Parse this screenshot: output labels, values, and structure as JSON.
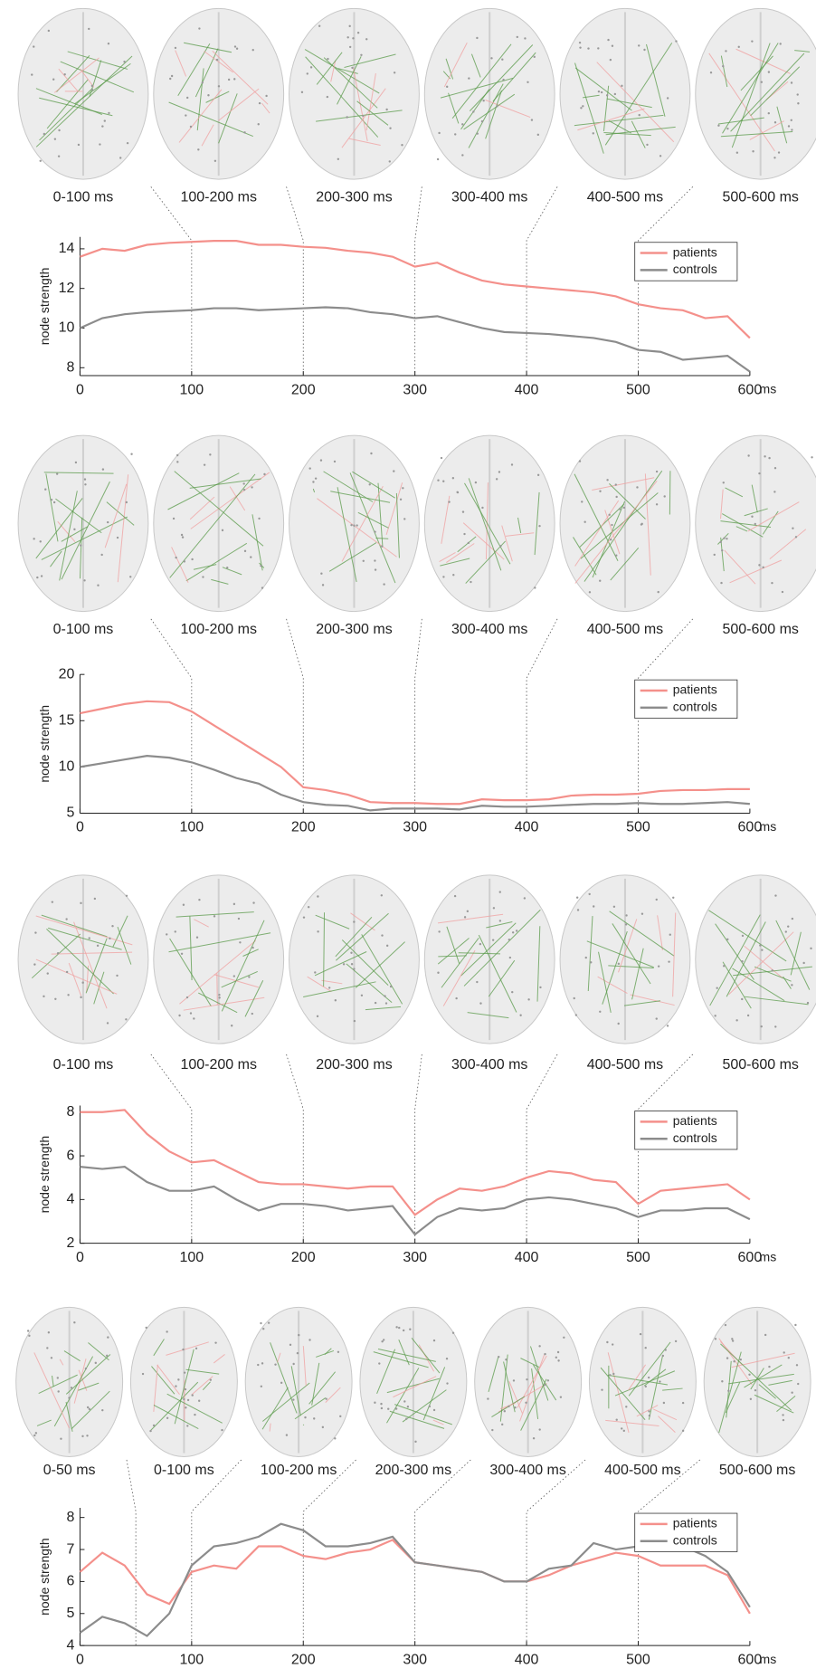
{
  "chart_data": [
    {
      "type": "line",
      "ylabel": "node strength",
      "xunit": "ms",
      "brain_labels": [
        "0-100 ms",
        "100-200 ms",
        "200-300 ms",
        "300-400 ms",
        "400-500 ms",
        "500-600 ms"
      ],
      "x": [
        0,
        20,
        40,
        60,
        80,
        100,
        120,
        140,
        160,
        180,
        200,
        220,
        240,
        260,
        280,
        300,
        320,
        340,
        360,
        380,
        400,
        420,
        440,
        460,
        480,
        500,
        520,
        540,
        560,
        580,
        600
      ],
      "series": [
        {
          "name": "patients",
          "color": "#f4908b",
          "values": [
            13.6,
            14.0,
            13.9,
            14.2,
            14.3,
            14.35,
            14.4,
            14.4,
            14.2,
            14.2,
            14.1,
            14.05,
            13.9,
            13.8,
            13.6,
            13.1,
            13.3,
            12.8,
            12.4,
            12.2,
            12.1,
            12.0,
            11.9,
            11.8,
            11.6,
            11.2,
            11.0,
            10.9,
            10.5,
            10.6,
            9.5
          ]
        },
        {
          "name": "controls",
          "color": "#8c8c8c",
          "values": [
            10.0,
            10.5,
            10.7,
            10.8,
            10.85,
            10.9,
            11.0,
            11.0,
            10.9,
            10.95,
            11.0,
            11.05,
            11.0,
            10.8,
            10.7,
            10.5,
            10.6,
            10.3,
            10.0,
            9.8,
            9.75,
            9.7,
            9.6,
            9.5,
            9.3,
            8.9,
            8.8,
            8.4,
            8.5,
            8.6,
            7.8
          ]
        }
      ],
      "xlim": [
        0,
        600
      ],
      "xticks": [
        0,
        100,
        200,
        300,
        400,
        500,
        600
      ],
      "ylim": [
        7.6,
        14.6
      ],
      "yticks": [
        8,
        10,
        12,
        14
      ],
      "legend": "upper right"
    },
    {
      "type": "line",
      "ylabel": "node strength",
      "xunit": "ms",
      "brain_labels": [
        "0-100 ms",
        "100-200 ms",
        "200-300 ms",
        "300-400 ms",
        "400-500 ms",
        "500-600 ms"
      ],
      "x": [
        0,
        20,
        40,
        60,
        80,
        100,
        120,
        140,
        160,
        180,
        200,
        220,
        240,
        260,
        280,
        300,
        320,
        340,
        360,
        380,
        400,
        420,
        440,
        460,
        480,
        500,
        520,
        540,
        560,
        580,
        600
      ],
      "series": [
        {
          "name": "patients",
          "color": "#f4908b",
          "values": [
            15.8,
            16.3,
            16.8,
            17.1,
            17.0,
            16.0,
            14.5,
            13.0,
            11.5,
            10.0,
            7.8,
            7.5,
            7.0,
            6.2,
            6.1,
            6.1,
            6.0,
            6.0,
            6.5,
            6.4,
            6.4,
            6.5,
            6.9,
            7.0,
            7.0,
            7.1,
            7.4,
            7.5,
            7.5,
            7.6,
            7.6
          ]
        },
        {
          "name": "controls",
          "color": "#8c8c8c",
          "values": [
            10.0,
            10.4,
            10.8,
            11.2,
            11.0,
            10.5,
            9.7,
            8.8,
            8.2,
            7.0,
            6.2,
            5.9,
            5.8,
            5.3,
            5.5,
            5.5,
            5.5,
            5.4,
            5.8,
            5.7,
            5.7,
            5.8,
            5.9,
            6.0,
            6.0,
            6.1,
            6.0,
            6.0,
            6.1,
            6.2,
            6.0
          ]
        }
      ],
      "xlim": [
        0,
        600
      ],
      "xticks": [
        0,
        100,
        200,
        300,
        400,
        500,
        600
      ],
      "ylim": [
        5,
        20
      ],
      "yticks": [
        5,
        10,
        15,
        20
      ],
      "legend": "upper right"
    },
    {
      "type": "line",
      "ylabel": "node strength",
      "xunit": "ms",
      "brain_labels": [
        "0-100 ms",
        "100-200 ms",
        "200-300 ms",
        "300-400 ms",
        "400-500 ms",
        "500-600 ms"
      ],
      "x": [
        0,
        20,
        40,
        60,
        80,
        100,
        120,
        140,
        160,
        180,
        200,
        220,
        240,
        260,
        280,
        300,
        320,
        340,
        360,
        380,
        400,
        420,
        440,
        460,
        480,
        500,
        520,
        540,
        560,
        580,
        600
      ],
      "series": [
        {
          "name": "patients",
          "color": "#f4908b",
          "values": [
            8.0,
            8.0,
            8.1,
            7.0,
            6.2,
            5.7,
            5.8,
            5.3,
            4.8,
            4.7,
            4.7,
            4.6,
            4.5,
            4.6,
            4.6,
            3.3,
            4.0,
            4.5,
            4.4,
            4.6,
            5.0,
            5.3,
            5.2,
            4.9,
            4.8,
            3.8,
            4.4,
            4.5,
            4.6,
            4.7,
            4.0
          ]
        },
        {
          "name": "controls",
          "color": "#8c8c8c",
          "values": [
            5.5,
            5.4,
            5.5,
            4.8,
            4.4,
            4.4,
            4.6,
            4.0,
            3.5,
            3.8,
            3.8,
            3.7,
            3.5,
            3.6,
            3.7,
            2.4,
            3.2,
            3.6,
            3.5,
            3.6,
            4.0,
            4.1,
            4.0,
            3.8,
            3.6,
            3.2,
            3.5,
            3.5,
            3.6,
            3.6,
            3.1
          ]
        }
      ],
      "xlim": [
        0,
        600
      ],
      "xticks": [
        0,
        100,
        200,
        300,
        400,
        500,
        600
      ],
      "ylim": [
        2,
        8.3
      ],
      "yticks": [
        2,
        4,
        6,
        8
      ],
      "legend": "upper right"
    },
    {
      "type": "line",
      "ylabel": "node strength",
      "xunit": "ms",
      "brain_labels": [
        "0-50 ms",
        "0-100 ms",
        "100-200 ms",
        "200-300 ms",
        "300-400 ms",
        "400-500 ms",
        "500-600 ms"
      ],
      "x": [
        0,
        20,
        40,
        60,
        80,
        100,
        120,
        140,
        160,
        180,
        200,
        220,
        240,
        260,
        280,
        300,
        320,
        340,
        360,
        380,
        400,
        420,
        440,
        460,
        480,
        500,
        520,
        540,
        560,
        580,
        600
      ],
      "series": [
        {
          "name": "patients",
          "color": "#f4908b",
          "values": [
            6.3,
            6.9,
            6.5,
            5.6,
            5.3,
            6.3,
            6.5,
            6.4,
            7.1,
            7.1,
            6.8,
            6.7,
            6.9,
            7.0,
            7.3,
            6.6,
            6.5,
            6.4,
            6.3,
            6.0,
            6.0,
            6.2,
            6.5,
            6.7,
            6.9,
            6.8,
            6.5,
            6.5,
            6.5,
            6.2,
            5.0
          ]
        },
        {
          "name": "controls",
          "color": "#8c8c8c",
          "values": [
            4.4,
            4.9,
            4.7,
            4.3,
            5.0,
            6.5,
            7.1,
            7.2,
            7.4,
            7.8,
            7.6,
            7.1,
            7.1,
            7.2,
            7.4,
            6.6,
            6.5,
            6.4,
            6.3,
            6.0,
            6.0,
            6.4,
            6.5,
            7.2,
            7.0,
            7.1,
            7.2,
            7.1,
            6.8,
            6.3,
            5.2
          ]
        }
      ],
      "xlim": [
        0,
        600
      ],
      "xticks": [
        0,
        100,
        200,
        300,
        400,
        500,
        600
      ],
      "ylim": [
        4,
        8.3
      ],
      "yticks": [
        4,
        5,
        6,
        7,
        8
      ],
      "legend": "upper right"
    }
  ]
}
